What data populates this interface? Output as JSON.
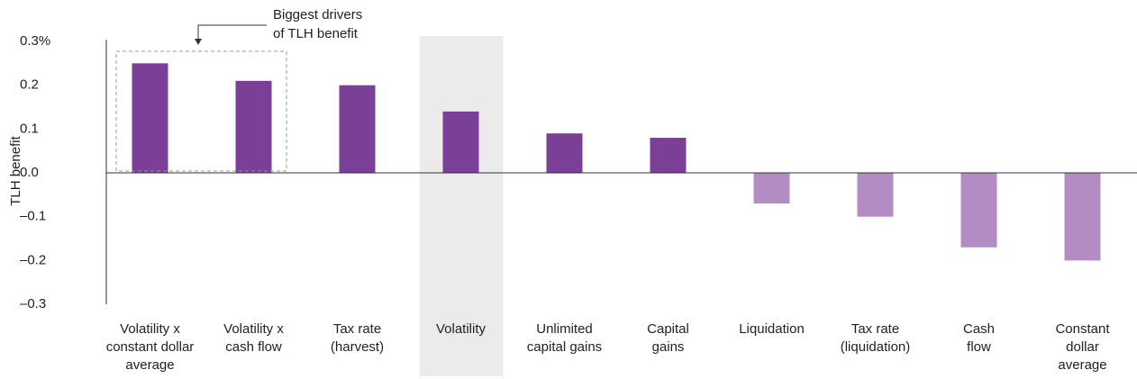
{
  "chart_data": {
    "type": "bar",
    "y_label": "TLH benefit",
    "annotation": [
      "Biggest drivers",
      "of TLH benefit"
    ],
    "categories": [
      [
        "Volatility x",
        "constant dollar",
        "average"
      ],
      [
        "Volatility x",
        "cash flow"
      ],
      [
        "Tax rate",
        "(harvest)"
      ],
      [
        "Volatility"
      ],
      [
        "Unlimited",
        "capital gains"
      ],
      [
        "Capital",
        "gains"
      ],
      [
        "Liquidation"
      ],
      [
        "Tax rate",
        "(liquidation)"
      ],
      [
        "Cash",
        "flow"
      ],
      [
        "Constant",
        "dollar",
        "average"
      ]
    ],
    "values": [
      0.25,
      0.21,
      0.2,
      0.14,
      0.09,
      0.08,
      -0.07,
      -0.1,
      -0.17,
      -0.2
    ],
    "positive_color": "#7b3f98",
    "negative_color": "#b48cc4",
    "highlight_index": 3,
    "ylim": [
      -0.3,
      0.3
    ],
    "yticks": [
      {
        "value": 0.3,
        "label": "0.3%"
      },
      0.2,
      0.1,
      {
        "value": 0,
        "label": "0.0"
      },
      {
        "value": -0.1,
        "label": "–0.1"
      },
      {
        "value": -0.2,
        "label": "–0.2"
      },
      {
        "value": -0.3,
        "label": "–0.3"
      }
    ]
  }
}
